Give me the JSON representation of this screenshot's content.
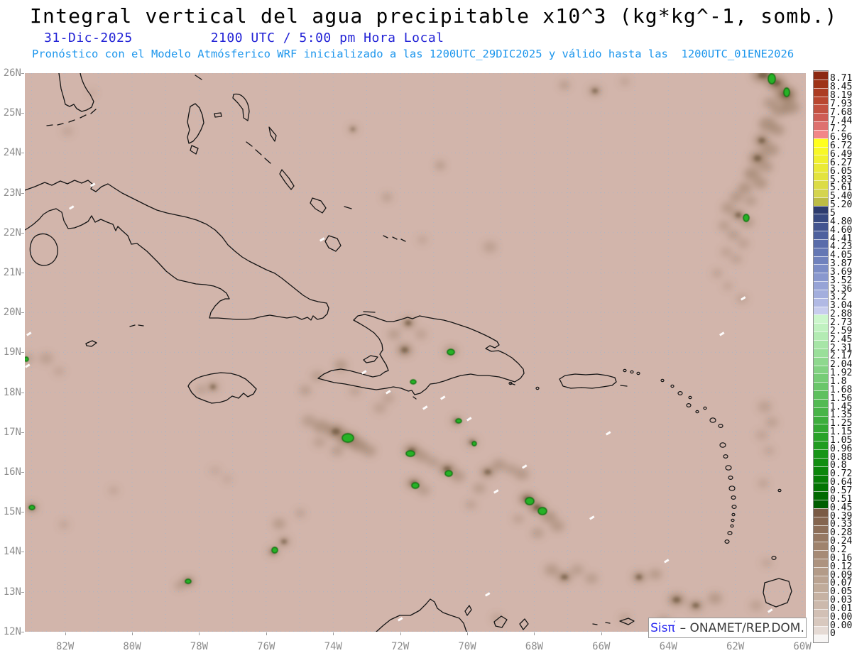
{
  "header": {
    "title": "Integral vertical del agua precipitable x10^3 (kg*kg^-1, somb.)",
    "date": "31-Dic-2025",
    "time": "2100 UTC / 5:00 pm Hora Local",
    "forecast": "Pronóstico con el Modelo Atmósferico WRF inicializado a las 1200UTC_29DIC2025 y válido hasta las  1200UTC_01ENE2026"
  },
  "credit": {
    "prefix": "Sis",
    "pi": "π",
    "accent": "´",
    "separator": "–",
    "org": "ONAMET/REP.DOM."
  },
  "colors": {
    "title": "#000000",
    "date_line": "#2323d6",
    "forecast_line": "#1d96ec",
    "map_bg": "#d2b5ab",
    "grid": "#a9b7c9",
    "coast": "#141414",
    "blob": "#8a6e53",
    "blob_core": "#5d482f",
    "green_fill": "#27b227",
    "green_edge": "#0a6e0a",
    "axis_label": "#8c8c8c",
    "credit_blue": "#2a2af0",
    "credit_dark": "#3a3a3a"
  },
  "axes": {
    "lat_labels": [
      "26N",
      "25N",
      "24N",
      "23N",
      "22N",
      "21N",
      "20N",
      "19N",
      "18N",
      "17N",
      "16N",
      "15N",
      "14N",
      "13N",
      "12N"
    ],
    "lon_labels": [
      "82W",
      "80W",
      "78W",
      "76W",
      "74W",
      "72W",
      "70W",
      "68W",
      "66W",
      "64W",
      "62W",
      "60W"
    ]
  },
  "colorbar": {
    "tick_labels": [
      "8.712",
      "8.45",
      "8.192",
      "7.938",
      "7.688",
      "7.442",
      "7.2",
      "6.962",
      "6.728",
      "6.498",
      "6.272",
      "6.05",
      "5.832",
      "5.618",
      "5.408",
      "5.202",
      "5",
      "4.802",
      "4.608",
      "4.418",
      "4.232",
      "4.05",
      "3.872",
      "3.698",
      "3.528",
      "3.362",
      "3.2",
      "3.042",
      "2.888",
      "2.738",
      "2.592",
      "2.45",
      "2.312",
      "2.178",
      "2.048",
      "1.922",
      "1.8",
      "1.682",
      "1.568",
      "1.458",
      "1.352",
      "1.25",
      "1.152",
      "1.058",
      "0.968",
      "0.882",
      "0.8",
      "0.722",
      "0.648",
      "0.578",
      "0.512",
      "0.45",
      "0.392",
      "0.338",
      "0.288",
      "0.242",
      "0.2",
      "0.162",
      "0.128",
      "0.098",
      "0.072",
      "0.05",
      "0.032",
      "0.018",
      "0.008",
      "0.002",
      "0"
    ],
    "cell_colors": [
      "#8c2811",
      "#9e3317",
      "#ac3d23",
      "#b94730",
      "#c35241",
      "#ce5d55",
      "#de716f",
      "#f28688",
      "#ffff1e",
      "#f8f826",
      "#f1f12e",
      "#eaea36",
      "#e3e33e",
      "#dcdc46",
      "#d4d44e",
      "#bcbc45",
      "#2d3c6e",
      "#384a81",
      "#435590",
      "#4e619e",
      "#596caa",
      "#6477b4",
      "#7082bd",
      "#7c8dc6",
      "#8998ce",
      "#96a3d6",
      "#a3aedd",
      "#b1b9e4",
      "#c8cdee",
      "#ccf6cc",
      "#c0f1c0",
      "#b3ebb3",
      "#a7e5a7",
      "#9adf9a",
      "#8ed88e",
      "#82d282",
      "#76cc76",
      "#6ac66a",
      "#5ec05e",
      "#53ba53",
      "#48b448",
      "#3dae3d",
      "#33a833",
      "#29a229",
      "#209c20",
      "#189518",
      "#118e11",
      "#0b860b",
      "#067e06",
      "#037403",
      "#016a01",
      "#005e00",
      "#7a5b45",
      "#84654f",
      "#8d6f59",
      "#967963",
      "#9f836d",
      "#a68b76",
      "#ad937f",
      "#b39b88",
      "#baa391",
      "#c0ab9a",
      "#c6b2a3",
      "#ccb9ac",
      "#d2c0b5",
      "#d8c8be",
      "#e5dad4",
      "#f7f5f4"
    ]
  },
  "map_features": {
    "blobs": [
      [
        1040,
        3,
        16,
        10,
        0.55,
        1
      ],
      [
        1058,
        14,
        14,
        10,
        0.6,
        1
      ],
      [
        1072,
        30,
        14,
        11,
        0.7,
        1
      ],
      [
        1079,
        48,
        12,
        9,
        0.5,
        0
      ],
      [
        1063,
        52,
        12,
        9,
        0.45,
        0
      ],
      [
        1050,
        42,
        10,
        8,
        0.4,
        0
      ],
      [
        1046,
        72,
        12,
        10,
        0.5,
        0
      ],
      [
        1060,
        80,
        10,
        8,
        0.45,
        0
      ],
      [
        1038,
        95,
        11,
        9,
        0.5,
        1
      ],
      [
        1050,
        108,
        12,
        9,
        0.45,
        0
      ],
      [
        1032,
        120,
        12,
        10,
        0.55,
        1
      ],
      [
        1044,
        132,
        10,
        8,
        0.4,
        0
      ],
      [
        1024,
        142,
        11,
        9,
        0.5,
        0
      ],
      [
        1036,
        155,
        10,
        8,
        0.45,
        0
      ],
      [
        1014,
        162,
        10,
        8,
        0.45,
        0
      ],
      [
        1002,
        175,
        9,
        8,
        0.4,
        0
      ],
      [
        1022,
        180,
        9,
        7,
        0.35,
        0
      ],
      [
        990,
        190,
        9,
        8,
        0.4,
        0
      ],
      [
        1005,
        200,
        10,
        8,
        0.45,
        1
      ],
      [
        1018,
        210,
        9,
        7,
        0.4,
        0
      ],
      [
        985,
        215,
        8,
        7,
        0.35,
        0
      ],
      [
        998,
        228,
        9,
        7,
        0.35,
        0
      ],
      [
        1012,
        240,
        8,
        7,
        0.3,
        0
      ],
      [
        988,
        252,
        8,
        6,
        0.3,
        0
      ],
      [
        1002,
        262,
        8,
        6,
        0.3,
        0
      ],
      [
        975,
        282,
        7,
        6,
        0.3,
        0
      ],
      [
        990,
        300,
        7,
        6,
        0.25,
        0
      ],
      [
        1010,
        318,
        8,
        6,
        0.3,
        0
      ],
      [
        1042,
        470,
        10,
        8,
        0.3,
        0
      ],
      [
        1052,
        492,
        9,
        7,
        0.3,
        0
      ],
      [
        1038,
        510,
        9,
        7,
        0.25,
        0
      ],
      [
        1048,
        532,
        8,
        6,
        0.25,
        0
      ],
      [
        1040,
        578,
        7,
        6,
        0.3,
        0
      ],
      [
        1045,
        690,
        8,
        6,
        0.25,
        0
      ],
      [
        60,
        82,
        8,
        6,
        0.25,
        0
      ],
      [
        95,
        28,
        6,
        5,
        0.2,
        0
      ],
      [
        462,
        79,
        6,
        5,
        0.55,
        1
      ],
      [
        585,
        130,
        7,
        6,
        0.4,
        0
      ],
      [
        760,
        17,
        7,
        6,
        0.4,
        0
      ],
      [
        803,
        25,
        9,
        7,
        0.45,
        1
      ],
      [
        845,
        12,
        7,
        5,
        0.3,
        0
      ],
      [
        510,
        175,
        7,
        6,
        0.35,
        0
      ],
      [
        655,
        245,
        10,
        8,
        0.3,
        0
      ],
      [
        560,
        235,
        7,
        6,
        0.25,
        0
      ],
      [
        540,
        352,
        10,
        8,
        0.45,
        1
      ],
      [
        520,
        368,
        9,
        7,
        0.35,
        0
      ],
      [
        558,
        368,
        8,
        7,
        0.3,
        0
      ],
      [
        535,
        390,
        11,
        9,
        0.5,
        1
      ],
      [
        600,
        392,
        10,
        8,
        0.4,
        0
      ],
      [
        445,
        412,
        9,
        8,
        0.4,
        0
      ],
      [
        412,
        427,
        9,
        7,
        0.35,
        0
      ],
      [
        395,
        447,
        8,
        7,
        0.35,
        0
      ],
      [
        465,
        448,
        8,
        6,
        0.3,
        0
      ],
      [
        265,
        442,
        8,
        7,
        0.45,
        1
      ],
      [
        248,
        446,
        7,
        6,
        0.35,
        0
      ],
      [
        30,
        402,
        10,
        8,
        0.3,
        0
      ],
      [
        5,
        402,
        7,
        6,
        0.35,
        0
      ],
      [
        48,
        420,
        8,
        6,
        0.25,
        0
      ],
      [
        400,
        490,
        10,
        8,
        0.35,
        0
      ],
      [
        418,
        498,
        12,
        9,
        0.45,
        0
      ],
      [
        438,
        505,
        13,
        10,
        0.55,
        1
      ],
      [
        455,
        515,
        14,
        10,
        0.6,
        1
      ],
      [
        470,
        524,
        12,
        9,
        0.5,
        0
      ],
      [
        485,
        532,
        10,
        8,
        0.4,
        0
      ],
      [
        440,
        532,
        9,
        7,
        0.35,
        0
      ],
      [
        415,
        520,
        9,
        7,
        0.3,
        0
      ],
      [
        500,
        472,
        9,
        7,
        0.3,
        0
      ],
      [
        512,
        458,
        8,
        7,
        0.3,
        0
      ],
      [
        545,
        532,
        12,
        9,
        0.5,
        1
      ],
      [
        560,
        540,
        10,
        8,
        0.4,
        0
      ],
      [
        575,
        548,
        9,
        7,
        0.35,
        0
      ],
      [
        595,
        558,
        12,
        9,
        0.5,
        1
      ],
      [
        610,
        568,
        10,
        8,
        0.4,
        0
      ],
      [
        548,
        578,
        11,
        8,
        0.5,
        1
      ],
      [
        562,
        588,
        9,
        7,
        0.35,
        0
      ],
      [
        608,
        490,
        8,
        7,
        0.4,
        1
      ],
      [
        630,
        520,
        9,
        7,
        0.35,
        1
      ],
      [
        640,
        585,
        9,
        7,
        0.35,
        0
      ],
      [
        628,
        608,
        8,
        6,
        0.3,
        0
      ],
      [
        652,
        562,
        11,
        8,
        0.45,
        1
      ],
      [
        668,
        552,
        10,
        8,
        0.4,
        0
      ],
      [
        685,
        558,
        9,
        7,
        0.35,
        0
      ],
      [
        700,
        565,
        10,
        8,
        0.4,
        0
      ],
      [
        708,
        600,
        12,
        9,
        0.55,
        1
      ],
      [
        722,
        612,
        12,
        9,
        0.55,
        1
      ],
      [
        738,
        625,
        11,
        8,
        0.45,
        0
      ],
      [
        750,
        638,
        10,
        8,
        0.4,
        0
      ],
      [
        722,
        648,
        9,
        7,
        0.35,
        0
      ],
      [
        695,
        628,
        8,
        6,
        0.3,
        0
      ],
      [
        358,
        635,
        9,
        7,
        0.4,
        0
      ],
      [
        365,
        660,
        9,
        7,
        0.4,
        1
      ],
      [
        350,
        674,
        8,
        7,
        0.45,
        1
      ],
      [
        388,
        620,
        7,
        6,
        0.3,
        0
      ],
      [
        230,
        716,
        9,
        7,
        0.5,
        1
      ],
      [
        218,
        722,
        7,
        6,
        0.35,
        0
      ],
      [
        125,
        588,
        7,
        6,
        0.25,
        0
      ],
      [
        55,
        636,
        7,
        6,
        0.25,
        0
      ],
      [
        10,
        612,
        8,
        7,
        0.45,
        1
      ],
      [
        268,
        560,
        8,
        6,
        0.2,
        0
      ],
      [
        285,
        572,
        7,
        6,
        0.2,
        0
      ],
      [
        742,
        700,
        10,
        8,
        0.4,
        0
      ],
      [
        760,
        710,
        11,
        8,
        0.45,
        1
      ],
      [
        778,
        700,
        9,
        7,
        0.35,
        0
      ],
      [
        798,
        712,
        9,
        7,
        0.35,
        0
      ],
      [
        865,
        710,
        10,
        8,
        0.45,
        1
      ],
      [
        888,
        706,
        9,
        7,
        0.4,
        0
      ],
      [
        918,
        742,
        12,
        9,
        0.5,
        1
      ],
      [
        945,
        750,
        11,
        8,
        0.45,
        1
      ],
      [
        972,
        740,
        10,
        8,
        0.4,
        0
      ],
      [
        900,
        772,
        9,
        7,
        0.35,
        0
      ],
      [
        845,
        768,
        8,
        6,
        0.3,
        0
      ],
      [
        665,
        768,
        8,
        6,
        0.3,
        0
      ],
      [
        1030,
        750,
        9,
        7,
        0.3,
        0
      ]
    ],
    "green_spots": [
      [
        1052,
        8,
        5,
        7
      ],
      [
        1073,
        27,
        4,
        6
      ],
      [
        1016,
        204,
        4,
        5
      ],
      [
        600,
        393,
        5,
        4
      ],
      [
        547,
        435,
        4,
        3
      ],
      [
        455,
        514,
        8,
        6
      ],
      [
        543,
        536,
        6,
        4
      ],
      [
        597,
        564,
        5,
        4
      ],
      [
        550,
        581,
        5,
        4
      ],
      [
        611,
        490,
        4,
        3
      ],
      [
        633,
        522,
        3,
        3
      ],
      [
        711,
        603,
        6,
        5
      ],
      [
        729,
        617,
        6,
        5
      ],
      [
        352,
        672,
        4,
        4
      ],
      [
        230,
        716,
        4,
        3
      ],
      [
        10,
        612,
        4,
        3
      ],
      [
        2,
        403,
        3,
        3
      ]
    ],
    "white_flecks": [
      [
        62,
        190
      ],
      [
        415,
        235
      ],
      [
        474,
        422
      ],
      [
        508,
        450
      ],
      [
        585,
        458
      ],
      [
        622,
        488
      ],
      [
        660,
        590
      ],
      [
        700,
        555
      ],
      [
        795,
        627
      ],
      [
        818,
        508
      ],
      [
        1008,
        318
      ],
      [
        978,
        368
      ],
      [
        900,
        688
      ],
      [
        1046,
        758
      ],
      [
        525,
        770
      ],
      [
        648,
        735
      ],
      [
        92,
        158
      ],
      [
        560,
        472
      ],
      [
        2,
        368
      ],
      [
        0,
        413
      ]
    ],
    "island_dots": [
      [
        845,
        419,
        2
      ],
      [
        855,
        421,
        2
      ],
      [
        864,
        423,
        2
      ],
      [
        898,
        433,
        2
      ],
      [
        912,
        441,
        2
      ],
      [
        923,
        451,
        3
      ],
      [
        937,
        457,
        2
      ],
      [
        935,
        468,
        3
      ],
      [
        947,
        477,
        2
      ],
      [
        958,
        472,
        2
      ],
      [
        969,
        489,
        4
      ],
      [
        980,
        497,
        3
      ],
      [
        983,
        524,
        4
      ],
      [
        987,
        540,
        3
      ],
      [
        991,
        556,
        4
      ],
      [
        994,
        570,
        3
      ],
      [
        996,
        585,
        4
      ],
      [
        998,
        598,
        3
      ],
      [
        999,
        611,
        3
      ],
      [
        998,
        622,
        2
      ],
      [
        997,
        630,
        2
      ],
      [
        996,
        638,
        2
      ],
      [
        993,
        648,
        3
      ],
      [
        989,
        660,
        3
      ],
      [
        1063,
        588,
        2
      ],
      [
        1055,
        683,
        3
      ],
      [
        722,
        444,
        2
      ],
      [
        684,
        437,
        2
      ]
    ]
  }
}
